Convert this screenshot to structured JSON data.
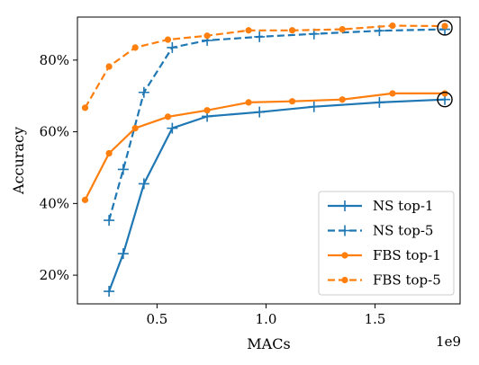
{
  "chart_data": {
    "type": "line",
    "title": "",
    "xlabel": "MACs",
    "ylabel": "Accuracy",
    "x_offset_label": "1e9",
    "xlim": [
      135000000.0,
      1890000000.0
    ],
    "ylim": [
      12,
      92
    ],
    "xticks": [
      {
        "value": 500000000.0,
        "label": "0.5"
      },
      {
        "value": 1000000000.0,
        "label": "1.0"
      },
      {
        "value": 1500000000.0,
        "label": "1.5"
      }
    ],
    "yticks": [
      {
        "value": 20,
        "label": "20%"
      },
      {
        "value": 40,
        "label": "40%"
      },
      {
        "value": 60,
        "label": "60%"
      },
      {
        "value": 80,
        "label": "80%"
      }
    ],
    "grid": false,
    "legend_position": "lower right",
    "series": [
      {
        "name": "NS top-1",
        "color": "#1f77b4",
        "dash": false,
        "marker": "plus",
        "x": [
          280000000.0,
          345000000.0,
          440000000.0,
          570000000.0,
          730000000.0,
          970000000.0,
          1220000000.0,
          1520000000.0,
          1820000000.0
        ],
        "y": [
          15.5,
          26,
          45.5,
          61,
          64.3,
          65.5,
          67,
          68.2,
          69
        ]
      },
      {
        "name": "NS top-5",
        "color": "#1f77b4",
        "dash": true,
        "marker": "plus",
        "x": [
          280000000.0,
          345000000.0,
          440000000.0,
          570000000.0,
          730000000.0,
          970000000.0,
          1220000000.0,
          1520000000.0,
          1820000000.0
        ],
        "y": [
          35.3,
          49.5,
          71,
          83.5,
          85.5,
          86.5,
          87.3,
          88.2,
          88.6
        ]
      },
      {
        "name": "FBS top-1",
        "color": "#ff7f0e",
        "dash": false,
        "marker": "dot",
        "x": [
          170000000.0,
          280000000.0,
          400000000.0,
          550000000.0,
          730000000.0,
          920000000.0,
          1120000000.0,
          1350000000.0,
          1580000000.0,
          1820000000.0
        ],
        "y": [
          41,
          54,
          61,
          64.2,
          66,
          68.2,
          68.5,
          69,
          70.7,
          70.7
        ]
      },
      {
        "name": "FBS top-5",
        "color": "#ff7f0e",
        "dash": true,
        "marker": "dot",
        "x": [
          170000000.0,
          280000000.0,
          400000000.0,
          550000000.0,
          730000000.0,
          920000000.0,
          1120000000.0,
          1350000000.0,
          1580000000.0,
          1820000000.0
        ],
        "y": [
          66.7,
          78.2,
          83.5,
          85.7,
          86.8,
          88.3,
          88.3,
          88.6,
          89.6,
          89.5
        ]
      }
    ],
    "annotations": [
      {
        "type": "circle",
        "x": 1820000000.0,
        "y": 89
      },
      {
        "type": "circle",
        "x": 1820000000.0,
        "y": 69
      }
    ]
  }
}
